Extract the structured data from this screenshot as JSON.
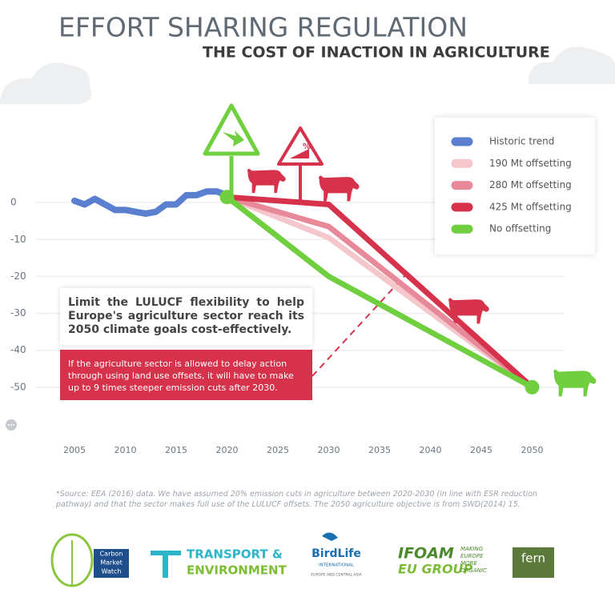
{
  "chart_data": {
    "type": "line",
    "title": "EFFORT SHARING REGULATION",
    "subtitle": "THE COST OF INACTION IN AGRICULTURE",
    "sign_label": "%",
    "annotation_title": "Limit the LULUCF flexibility to help Europe's agriculture sector reach its 2050 climate goals cost-effectively.",
    "annotation_text": "If the agriculture sector is allowed to delay action through using land use offsets, it will have to make up to 9 times steeper emission cuts after 2030.",
    "xlim": [
      2003,
      2053
    ],
    "xticks": [
      2005,
      2010,
      2015,
      2020,
      2025,
      2030,
      2035,
      2040,
      2045,
      2050
    ],
    "ylim": [
      -60,
      10
    ],
    "yticks": [
      0,
      -10,
      -20,
      -30,
      -40,
      -50
    ],
    "grid": true,
    "series": [
      {
        "name": "Historic trend",
        "color": "#5b7fcf",
        "x": [
          2005,
          2006,
          2007,
          2008,
          2009,
          2010,
          2011,
          2012,
          2013,
          2014,
          2015,
          2016,
          2017,
          2018,
          2019,
          2020
        ],
        "values": [
          0.5,
          -0.5,
          1,
          -0.5,
          -2,
          -2,
          -2.5,
          -3,
          -2.5,
          -0.5,
          -0.5,
          2,
          2,
          3,
          3,
          2
        ]
      },
      {
        "name": "190 Mt offsetting",
        "color": "#f5c6cc",
        "x": [
          2020,
          2030,
          2050
        ],
        "values": [
          1.5,
          -9.5,
          -50
        ]
      },
      {
        "name": "280 Mt offsetting",
        "color": "#e8899a",
        "x": [
          2020,
          2030,
          2050
        ],
        "values": [
          1.5,
          -6.5,
          -50
        ]
      },
      {
        "name": "425 Mt offsetting",
        "color": "#d7324b",
        "x": [
          2020,
          2030,
          2050
        ],
        "values": [
          1.5,
          -0.5,
          -50
        ]
      },
      {
        "name": "No offsetting",
        "color": "#6fcf3f",
        "x": [
          2020,
          2030,
          2050
        ],
        "values": [
          1.5,
          -20,
          -50
        ]
      }
    ]
  },
  "source": "*Source: EEA (2016) data. We have assumed 20% emission cuts in agriculture between 2020-2030 (in line with ESR reduction pathway) and that the sector makes full use of the LULUCF offsets. The 2050 agriculture objective is from SWD(2014) 15.",
  "logos": {
    "cmw": [
      "Carbon",
      "Market",
      "Watch"
    ],
    "te": [
      "TRANSPORT &",
      "ENVIRONMENT"
    ],
    "birdlife": [
      "BirdLife",
      "INTERNATIONAL",
      "EUROPE AND CENTRAL ASIA"
    ],
    "ifoam": [
      "IFOAM",
      "EU GROUP",
      "MAKING",
      "EUROPE",
      "MORE",
      "ORGANIC"
    ],
    "fern": "fern"
  }
}
